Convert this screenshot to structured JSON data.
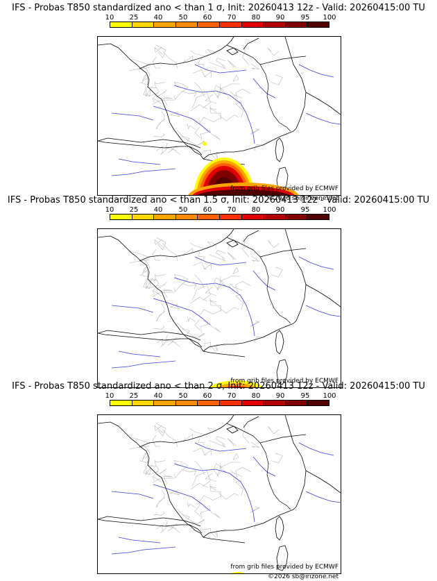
{
  "legend": {
    "labels": [
      "10",
      "25",
      "40",
      "50",
      "60",
      "70",
      "80",
      "90",
      "95",
      "100"
    ],
    "colors": [
      "#ffff00",
      "#ffd700",
      "#ffa500",
      "#ff8c00",
      "#ff6000",
      "#ff3000",
      "#e00000",
      "#b00000",
      "#800000",
      "#500000"
    ]
  },
  "panels": [
    {
      "title": "IFS - Probas T850  standardized ano < than 1 σ, Init: 20260413 12z - Valid: 20260415:00 TU",
      "credit_grib": "from grib files provided by ECMWF",
      "credit_copyright": "©2026 sb@irizone.net",
      "anomaly_extent": "large"
    },
    {
      "title": "IFS - Probas T850  standardized ano < than 1.5 σ, Init: 20260413 12z - Valid: 20260415:00 TU",
      "credit_grib": "from grib files provided by ECMWF",
      "credit_copyright": "",
      "anomaly_extent": "small"
    },
    {
      "title": "IFS - Probas T850  standardized ano < than 2 σ, Init: 20260413 12z - Valid: 20260415:00 TU",
      "credit_grib": "from grib files provided by ECMWF",
      "credit_copyright": "©2026 sb@irizone.net",
      "anomaly_extent": "tiny"
    }
  ]
}
